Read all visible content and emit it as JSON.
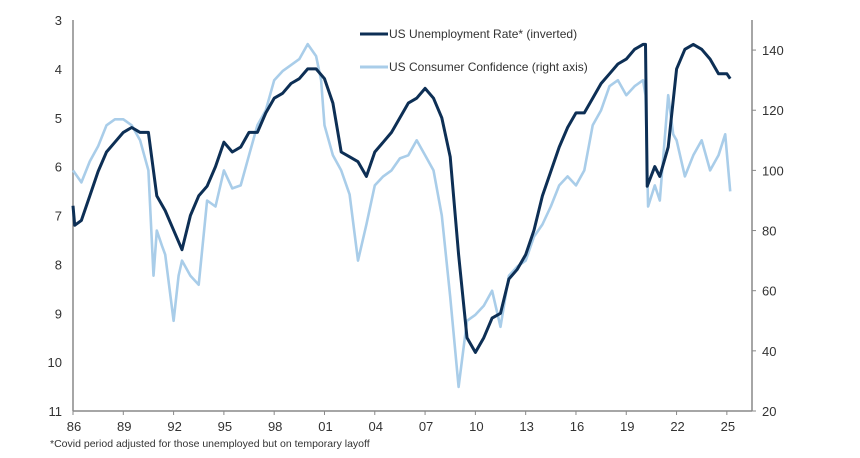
{
  "chart_data": {
    "type": "line",
    "title": "",
    "footnote": "*Covid period adjusted for those unemployed but on temporary layoff",
    "x_axis": {
      "range": [
        1986,
        2026.5
      ],
      "tick_values": [
        1986,
        1989,
        1992,
        1995,
        1998,
        2001,
        2004,
        2007,
        2010,
        2013,
        2016,
        2019,
        2022,
        2025
      ],
      "tick_labels": [
        "86",
        "89",
        "92",
        "95",
        "98",
        "01",
        "04",
        "07",
        "10",
        "13",
        "16",
        "19",
        "22",
        "25"
      ]
    },
    "y_left": {
      "range": [
        3,
        11
      ],
      "inverted": true,
      "ticks": [
        "3",
        "4",
        "5",
        "6",
        "7",
        "8",
        "9",
        "10",
        "11"
      ]
    },
    "y_right": {
      "range": [
        20,
        150
      ],
      "ticks": [
        "20",
        "40",
        "60",
        "80",
        "100",
        "120",
        "140"
      ]
    },
    "grid": false,
    "legend": "top-center",
    "series": [
      {
        "name": "US Unemployment Rate* (inverted)",
        "axis": "left",
        "color": "#0d2f55",
        "x": [
          1986,
          1986.1,
          1986.5,
          1987,
          1987.5,
          1988,
          1988.5,
          1989,
          1989.5,
          1990,
          1990.5,
          1991,
          1991.5,
          1992,
          1992.5,
          1993,
          1993.5,
          1994,
          1994.5,
          1995,
          1995.5,
          1996,
          1996.5,
          1997,
          1997.5,
          1998,
          1998.5,
          1999,
          1999.5,
          2000,
          2000.5,
          2001,
          2001.5,
          2002,
          2002.5,
          2003,
          2003.5,
          2004,
          2004.5,
          2005,
          2005.5,
          2006,
          2006.5,
          2007,
          2007.5,
          2008,
          2008.5,
          2009,
          2009.5,
          2010,
          2010.5,
          2011,
          2011.5,
          2012,
          2012.5,
          2013,
          2013.5,
          2014,
          2014.5,
          2015,
          2015.5,
          2016,
          2016.5,
          2017,
          2017.5,
          2018,
          2018.5,
          2019,
          2019.5,
          2020,
          2020.15,
          2020.25,
          2020.7,
          2021,
          2021.5,
          2022,
          2022.5,
          2023,
          2023.5,
          2024,
          2024.5,
          2025,
          2025.2
        ],
        "values": [
          6.8,
          7.2,
          7.1,
          6.6,
          6.1,
          5.7,
          5.5,
          5.3,
          5.2,
          5.3,
          5.3,
          6.6,
          6.9,
          7.3,
          7.7,
          7.0,
          6.6,
          6.4,
          6.0,
          5.5,
          5.7,
          5.6,
          5.3,
          5.3,
          4.9,
          4.6,
          4.5,
          4.3,
          4.2,
          4.0,
          4.0,
          4.2,
          4.7,
          5.7,
          5.8,
          5.9,
          6.2,
          5.7,
          5.5,
          5.3,
          5.0,
          4.7,
          4.6,
          4.4,
          4.6,
          5.0,
          5.8,
          7.8,
          9.5,
          9.8,
          9.5,
          9.1,
          9.0,
          8.3,
          8.1,
          7.8,
          7.3,
          6.6,
          6.1,
          5.6,
          5.2,
          4.9,
          4.9,
          4.6,
          4.3,
          4.1,
          3.9,
          3.8,
          3.6,
          3.5,
          3.5,
          6.4,
          6.0,
          6.2,
          5.6,
          4.0,
          3.6,
          3.5,
          3.6,
          3.8,
          4.1,
          4.1,
          4.2
        ]
      },
      {
        "name": "US Consumer Confidence (right axis)",
        "axis": "right",
        "color": "#a9cde9",
        "x": [
          1986,
          1986.5,
          1987,
          1987.5,
          1988,
          1988.5,
          1989,
          1989.5,
          1990,
          1990.5,
          1990.8,
          1991,
          1991.3,
          1991.5,
          1992,
          1992.3,
          1992.5,
          1993,
          1993.5,
          1994,
          1994.5,
          1995,
          1995.5,
          1996,
          1996.5,
          1997,
          1997.5,
          1998,
          1998.5,
          1999,
          1999.5,
          2000,
          2000.5,
          2000.8,
          2001,
          2001.5,
          2002,
          2002.5,
          2003,
          2003.5,
          2004,
          2004.5,
          2005,
          2005.5,
          2006,
          2006.5,
          2007,
          2007.5,
          2008,
          2008.5,
          2009,
          2009.5,
          2010,
          2010.5,
          2011,
          2011.5,
          2012,
          2012.5,
          2013,
          2013.5,
          2014,
          2014.5,
          2015,
          2015.5,
          2016,
          2016.5,
          2017,
          2017.5,
          2018,
          2018.5,
          2019,
          2019.5,
          2020,
          2020.15,
          2020.3,
          2020.7,
          2021,
          2021.5,
          2021.8,
          2022,
          2022.5,
          2023,
          2023.5,
          2024,
          2024.5,
          2024.9,
          2025.2
        ],
        "values": [
          100,
          96,
          103,
          108,
          115,
          117,
          117,
          115,
          110,
          100,
          65,
          80,
          75,
          72,
          50,
          65,
          70,
          65,
          62,
          90,
          88,
          100,
          94,
          95,
          105,
          115,
          120,
          130,
          133,
          135,
          137,
          142,
          138,
          130,
          115,
          105,
          100,
          92,
          70,
          82,
          95,
          98,
          100,
          104,
          105,
          110,
          105,
          100,
          85,
          58,
          28,
          50,
          52,
          55,
          60,
          48,
          65,
          68,
          70,
          78,
          82,
          88,
          95,
          98,
          95,
          100,
          115,
          120,
          128,
          130,
          125,
          128,
          130,
          125,
          88,
          95,
          90,
          125,
          112,
          110,
          98,
          105,
          110,
          100,
          105,
          112,
          93
        ]
      }
    ]
  }
}
